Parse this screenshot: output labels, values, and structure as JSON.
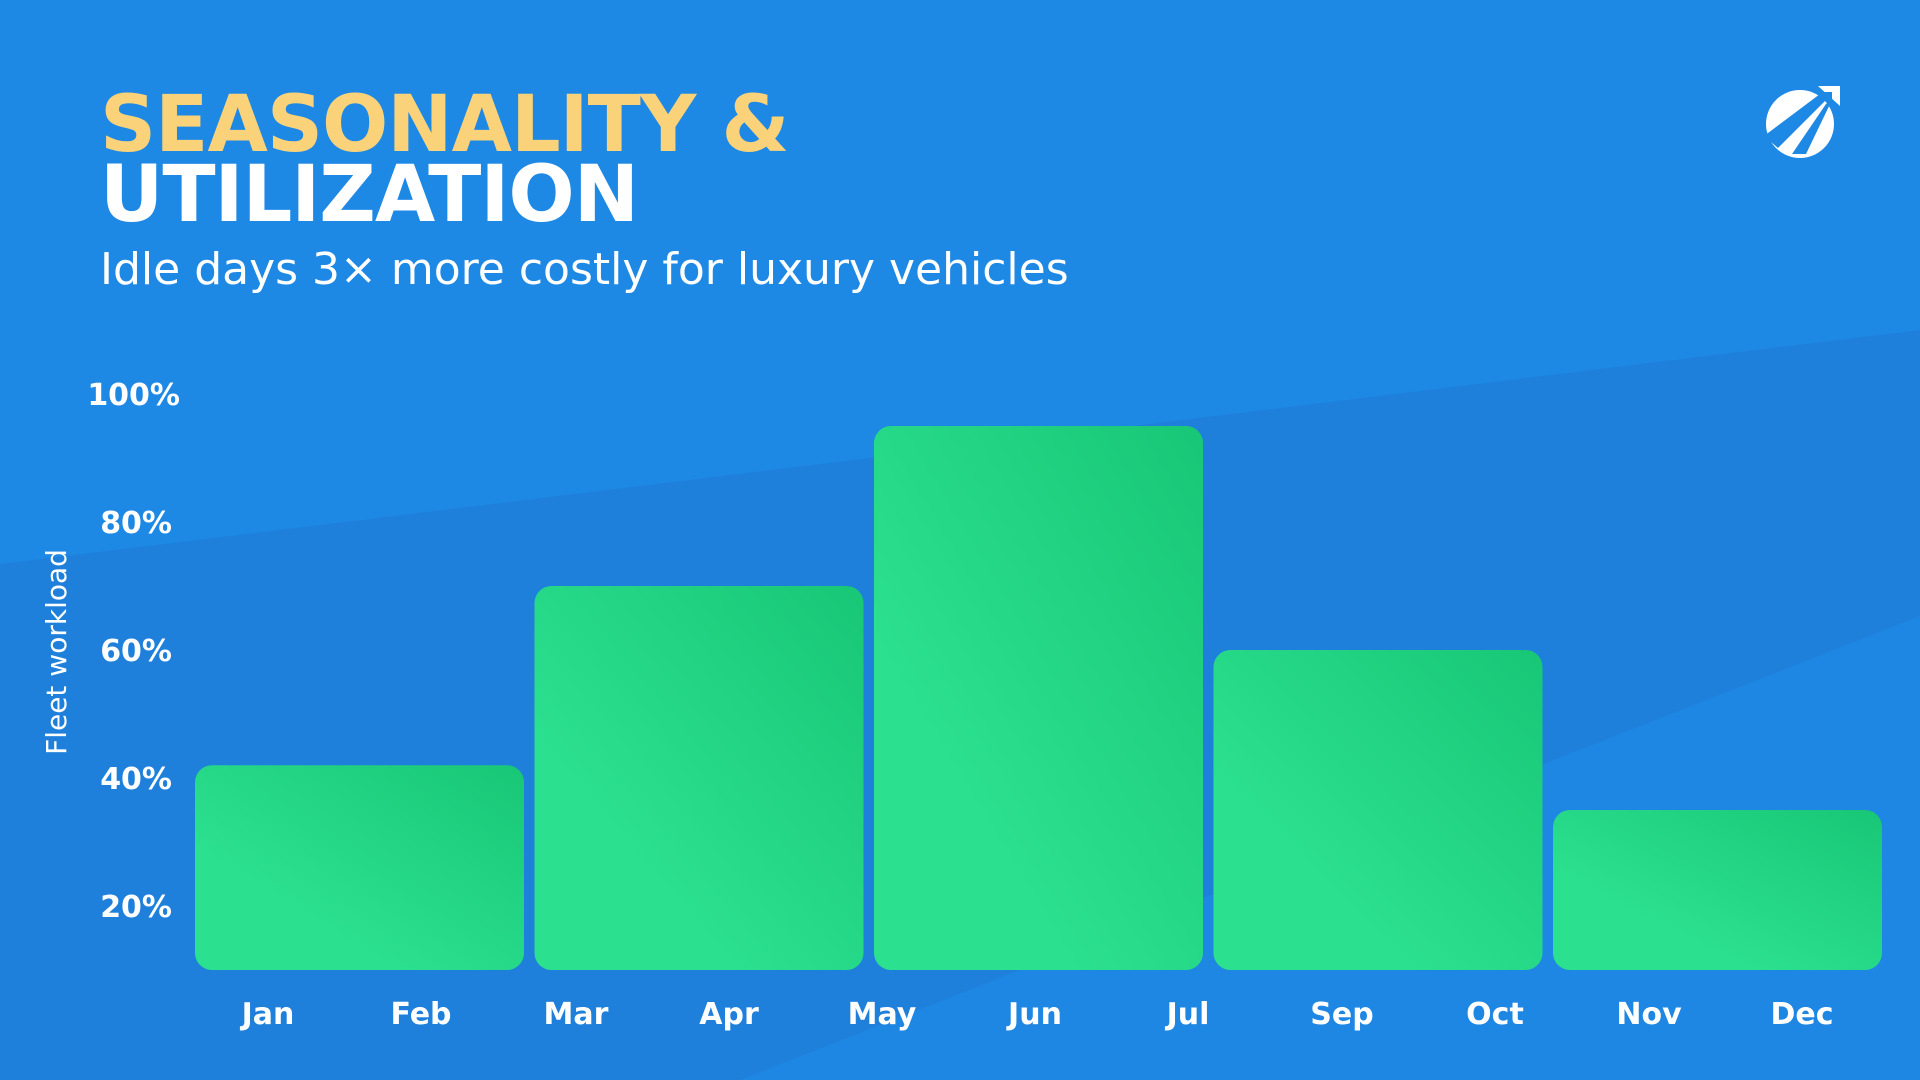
{
  "header": {
    "title_line1": "SEASONALITY &",
    "title_line2": "UTILIZATION",
    "subtitle": "Idle days 3× more costly for luxury vehicles",
    "logo_icon": "paper-plane-circle-logo"
  },
  "colors": {
    "background": "#1E88E5",
    "background_band": "#1E7FDA",
    "title_accent": "#F9D27A",
    "bar_light": "#2BE08F",
    "bar_dark": "#18C776"
  },
  "chart_data": {
    "type": "bar",
    "title": "",
    "ylabel": "Fleet workload",
    "xlabel": "",
    "y_ticks": [
      "20%",
      "40%",
      "60%",
      "80%",
      "100%"
    ],
    "x_ticks": [
      "Jan",
      "Feb",
      "Mar",
      "Apr",
      "May",
      "Jun",
      "Jul",
      "Sep",
      "Oct",
      "Nov",
      "Dec"
    ],
    "bars": [
      {
        "span": [
          "Jan",
          "Feb"
        ],
        "value": 42
      },
      {
        "span": [
          "Mar",
          "Apr"
        ],
        "value": 70
      },
      {
        "span": [
          "May",
          "Jun"
        ],
        "value": 95
      },
      {
        "span": [
          "Jul",
          "Sep"
        ],
        "value": 60
      },
      {
        "span": [
          "Nov",
          "Dec"
        ],
        "value": 35
      }
    ],
    "ylim": [
      10,
      100
    ],
    "grid": false,
    "legend": "none"
  }
}
